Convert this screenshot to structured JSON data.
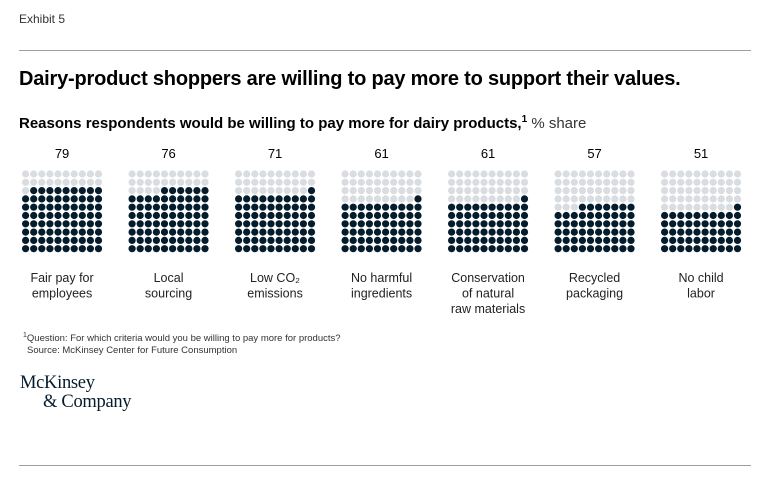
{
  "header": {
    "exhibit": "Exhibit 5",
    "title": "Dairy-product shoppers are willing to pay more to support their values.",
    "subtitle": "Reasons respondents would be willing to pay more for dairy products,",
    "subtitle_note_marker": "1",
    "subtitle_unit": "% share"
  },
  "chart_data": {
    "type": "waffle",
    "title": "Reasons respondents would be willing to pay more for dairy products, % share",
    "total_per_category": 100,
    "colors": {
      "filled": "#051c2c",
      "empty": "#d9dce0"
    },
    "categories": [
      {
        "lines": [
          "Fair pay for",
          "employees"
        ],
        "value": 79
      },
      {
        "lines": [
          "Local",
          "sourcing"
        ],
        "value": 76
      },
      {
        "lines": [
          "Low CO₂",
          "emissions"
        ],
        "value": 71
      },
      {
        "lines": [
          "No harmful",
          "ingredients"
        ],
        "value": 61
      },
      {
        "lines": [
          "Conservation",
          "of natural",
          "raw materials"
        ],
        "value": 61
      },
      {
        "lines": [
          "Recycled",
          "packaging"
        ],
        "value": 57
      },
      {
        "lines": [
          "No child",
          "labor"
        ],
        "value": 51
      }
    ]
  },
  "footnote": {
    "marker": "1",
    "question": "Question: For which criteria would you be willing to pay more for products?",
    "source": "Source: McKinsey Center for Future Consumption"
  },
  "logo": {
    "line1": "McKinsey",
    "line2": "& Company"
  }
}
